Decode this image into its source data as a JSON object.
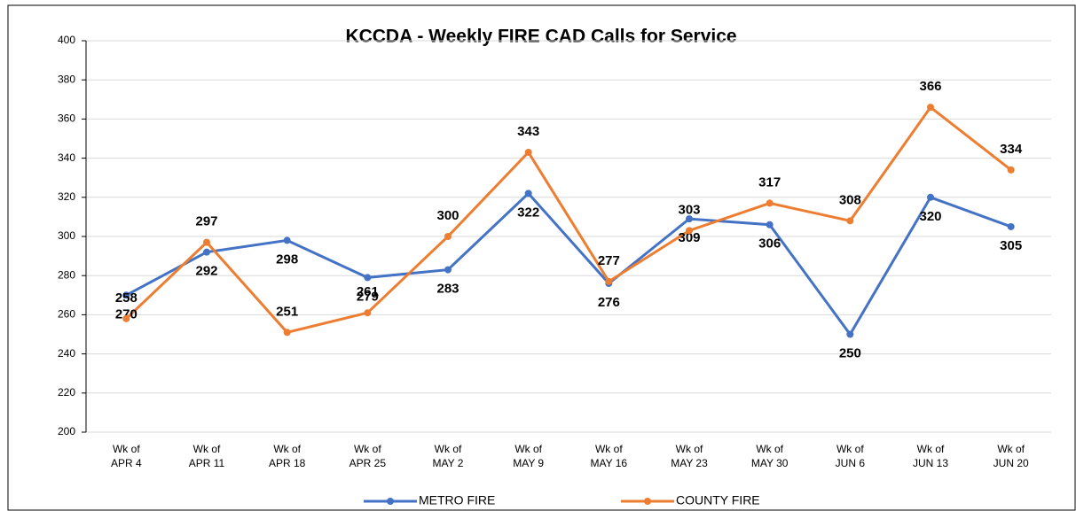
{
  "chart_data": {
    "type": "line",
    "title": "KCCDA - Weekly FIRE CAD Calls for Service",
    "categories": [
      "Wk of APR 4",
      "Wk of APR 11",
      "Wk of APR 18",
      "Wk of APR 25",
      "Wk of MAY 2",
      "Wk of MAY 9",
      "Wk of MAY 16",
      "Wk of MAY 23",
      "Wk of MAY 30",
      "Wk of JUN 6",
      "Wk of JUN 13",
      "Wk of JUN 20"
    ],
    "series": [
      {
        "name": "METRO FIRE",
        "color": "#4472c4",
        "values": [
          270,
          292,
          298,
          279,
          283,
          322,
          276,
          309,
          306,
          250,
          320,
          305
        ]
      },
      {
        "name": "COUNTY FIRE",
        "color": "#ed7d31",
        "values": [
          258,
          297,
          251,
          261,
          300,
          343,
          277,
          303,
          317,
          308,
          366,
          334
        ]
      }
    ],
    "ylim": [
      200,
      400
    ],
    "yticks": [
      200,
      220,
      240,
      260,
      280,
      300,
      320,
      340,
      360,
      380,
      400
    ],
    "grid": true,
    "legend": "bottom"
  }
}
